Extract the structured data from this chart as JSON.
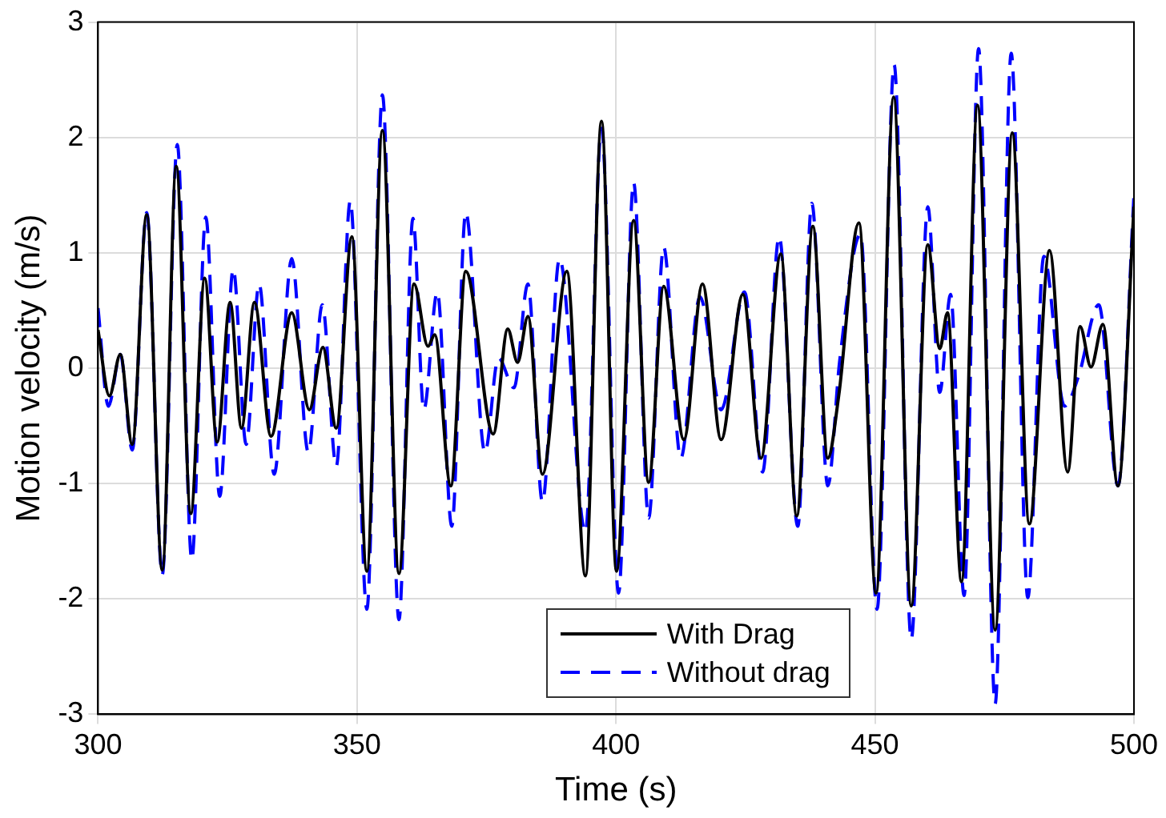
{
  "chart_data": {
    "type": "line",
    "xlabel": "Time (s)",
    "ylabel": "Motion velocity (m/s)",
    "xlim": [
      300,
      500
    ],
    "xticks": [
      300,
      350,
      400,
      450,
      500
    ],
    "ylim": [
      -3,
      3
    ],
    "yticks": [
      -3,
      -2,
      -1,
      0,
      1,
      2,
      3
    ],
    "grid": true,
    "legend": "bottom",
    "marker": "none",
    "series": [
      {
        "name": "With Drag",
        "color": "#000000",
        "line_style": "solid",
        "x": [
          300,
          302.2,
          304.3,
          306.6,
          309.4,
          312.4,
          315.1,
          317.9,
          320.6,
          323,
          325.5,
          327.7,
          330.2,
          333.4,
          337.4,
          340.8,
          343.4,
          346,
          349,
          351.9,
          354.9,
          358.1,
          361,
          363.7,
          365,
          368.1,
          371,
          376.3,
          379.1,
          381,
          383,
          385.8,
          390.5,
          394.1,
          397.2,
          400.1,
          403.4,
          406.3,
          409.2,
          413.1,
          416.7,
          420.3,
          424.5,
          428,
          431.8,
          434.9,
          438,
          440.9,
          443,
          446.9,
          450.2,
          453.6,
          457,
          460.2,
          462.5,
          464,
          466.7,
          469.8,
          473.2,
          476.5,
          479.8,
          483.7,
          487.2,
          489.6,
          491.7,
          494,
          496.9,
          500
        ],
        "values": [
          0.33,
          -0.24,
          0.12,
          -0.66,
          1.33,
          -1.75,
          1.75,
          -1.26,
          0.78,
          -0.64,
          0.57,
          -0.52,
          0.57,
          -0.59,
          0.48,
          -0.36,
          0.18,
          -0.52,
          1.14,
          -1.76,
          2.06,
          -1.78,
          0.73,
          0.19,
          0.29,
          -1.02,
          0.84,
          -0.57,
          0.34,
          0.05,
          0.45,
          -0.92,
          0.84,
          -1.8,
          2.14,
          -1.76,
          1.28,
          -0.99,
          0.71,
          -0.62,
          0.73,
          -0.62,
          0.64,
          -0.78,
          0.99,
          -1.28,
          1.23,
          -0.78,
          -0.24,
          1.26,
          -1.95,
          2.35,
          -2.06,
          1.07,
          0.17,
          0.48,
          -1.85,
          2.28,
          -2.27,
          2.04,
          -1.35,
          1.02,
          -0.9,
          0.36,
          0.01,
          0.38,
          -1.02,
          1.4
        ]
      },
      {
        "name": "Without drag",
        "color": "#0000ff",
        "line_style": "dashed",
        "x": [
          300,
          302,
          304.3,
          306.6,
          309.4,
          312.4,
          315.3,
          318.1,
          320.8,
          323.5,
          326.1,
          328.6,
          331.1,
          334,
          337.4,
          340.6,
          343.3,
          346,
          348.7,
          351.9,
          354.9,
          358.1,
          360.8,
          362.9,
          365.5,
          368.3,
          371,
          374.7,
          377.3,
          380.3,
          383,
          385.8,
          389.1,
          394.1,
          397.2,
          400.5,
          403.4,
          406.3,
          409.2,
          412.5,
          416.2,
          420.3,
          424.8,
          428.3,
          431.5,
          435.1,
          437.8,
          440.9,
          443.2,
          447.2,
          450.4,
          453.7,
          457,
          460.2,
          462.5,
          464.6,
          467.2,
          470,
          473.2,
          476.3,
          479.5,
          482.6,
          486.6,
          489.3,
          493.2,
          496.9,
          500
        ],
        "values": [
          0.52,
          -0.33,
          0.12,
          -0.71,
          1.35,
          -1.79,
          1.94,
          -1.66,
          1.31,
          -1.11,
          0.86,
          -0.66,
          0.73,
          -0.92,
          0.95,
          -0.73,
          0.55,
          -0.85,
          1.45,
          -2.09,
          2.37,
          -2.18,
          1.3,
          -0.36,
          0.66,
          -1.37,
          1.35,
          -0.73,
          0.09,
          -0.17,
          0.73,
          -1.16,
          0.95,
          -1.42,
          2.08,
          -1.95,
          1.61,
          -1.3,
          1.05,
          -0.78,
          0.62,
          -0.36,
          0.66,
          -0.9,
          1.14,
          -1.37,
          1.43,
          -1.02,
          0.07,
          1.16,
          -2.09,
          2.63,
          -2.35,
          1.4,
          -0.21,
          0.64,
          -1.97,
          2.77,
          -2.91,
          2.73,
          -1.99,
          0.97,
          -0.33,
          -0.07,
          0.55,
          -1.02,
          1.5
        ]
      }
    ]
  }
}
